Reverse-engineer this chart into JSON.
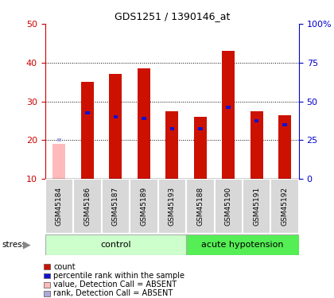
{
  "title": "GDS1251 / 1390146_at",
  "samples": [
    "GSM45184",
    "GSM45186",
    "GSM45187",
    "GSM45189",
    "GSM45193",
    "GSM45188",
    "GSM45190",
    "GSM45191",
    "GSM45192"
  ],
  "count_values": [
    19.0,
    35.0,
    37.0,
    38.5,
    27.5,
    26.0,
    43.0,
    27.5,
    26.5
  ],
  "rank_values": [
    20.0,
    27.0,
    26.0,
    25.5,
    23.0,
    23.0,
    28.5,
    25.0,
    24.0
  ],
  "absent_flags": [
    true,
    false,
    false,
    false,
    false,
    false,
    false,
    false,
    false
  ],
  "groups": {
    "control": [
      0,
      1,
      2,
      3,
      4
    ],
    "acute hypotension": [
      5,
      6,
      7,
      8
    ]
  },
  "ylim_left": [
    10,
    50
  ],
  "ylim_right": [
    0,
    100
  ],
  "yticks_left": [
    10,
    20,
    30,
    40,
    50
  ],
  "yticks_right": [
    0,
    25,
    50,
    75,
    100
  ],
  "color_count_present": "#cc1100",
  "color_rank_present": "#1111cc",
  "color_count_absent": "#ffbbbb",
  "color_rank_absent": "#aaaadd",
  "color_group_control_light": "#ccffcc",
  "color_group_acute_dark": "#55ee55",
  "left_axis_color": "#cc0000",
  "right_axis_color": "#0000cc",
  "bar_width": 0.45
}
